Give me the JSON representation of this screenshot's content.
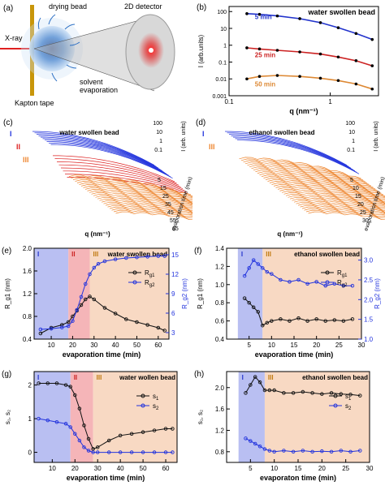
{
  "panel_a": {
    "letter": "(a)",
    "labels": {
      "xray": "X-ray",
      "drying_bead": "drying bead",
      "detector": "2D detector",
      "solvent_1": "solvent",
      "solvent_2": "evaporation",
      "kapton": "Kapton tape"
    },
    "colors": {
      "beam": "#e02020",
      "tape": "#c8960a",
      "bead": "#2b6fc4",
      "spot": "#ff2020"
    }
  },
  "chart_data": [
    {
      "panel": "(b)",
      "type": "scatter",
      "title": "water swollen bead",
      "log_x": true,
      "log_y": true,
      "xlabel": "q (nm⁻¹)",
      "ylabel": "I (arb.units)",
      "xlim": [
        0.1,
        3
      ],
      "ylim": [
        0.001,
        200
      ],
      "x_ticks": [
        "0.1",
        "1"
      ],
      "y_ticks": [
        "0.001",
        "0.01",
        "0.1",
        "1",
        "10",
        "100"
      ],
      "series": [
        {
          "name": "5 min",
          "color": "#2233cc",
          "x": [
            0.15,
            0.2,
            0.3,
            0.5,
            0.8,
            1.2,
            1.8,
            2.6
          ],
          "y": [
            75,
            68,
            55,
            38,
            22,
            11,
            5,
            2.2
          ]
        },
        {
          "name": "25 min",
          "color": "#cc2222",
          "x": [
            0.15,
            0.2,
            0.3,
            0.5,
            0.8,
            1.2,
            1.8,
            2.6
          ],
          "y": [
            0.7,
            0.6,
            0.5,
            0.4,
            0.3,
            0.2,
            0.12,
            0.06
          ]
        },
        {
          "name": "50 min",
          "color": "#dd8833",
          "x": [
            0.15,
            0.2,
            0.3,
            0.5,
            0.8,
            1.2,
            1.8,
            2.6
          ],
          "y": [
            0.01,
            0.014,
            0.016,
            0.014,
            0.011,
            0.008,
            0.005,
            0.0025
          ]
        }
      ]
    },
    {
      "panel": "(c)",
      "type": "area",
      "title": "water swollen bead",
      "xlabel": "q (nm⁻¹)",
      "zlabel": "I (arb. units)",
      "ylabel": "evaporation time (min)",
      "z_ticks": [
        "0.1",
        "1",
        "10",
        "100"
      ],
      "t_ticks": [
        "5",
        "15",
        "25",
        "35",
        "45",
        "55",
        "65"
      ],
      "regions": [
        "I",
        "II",
        "III"
      ],
      "colors": [
        "#2233dd",
        "#dd2222",
        "#ee8833"
      ]
    },
    {
      "panel": "(d)",
      "type": "area",
      "title": "ethanol swollen bead",
      "xlabel": "q (nm⁻¹)",
      "zlabel": "I (arb. units)",
      "ylabel": "evaporation time (min)",
      "z_ticks": [
        "0.1",
        "1",
        "10",
        "100"
      ],
      "t_ticks": [
        "5",
        "10",
        "15",
        "20",
        "25",
        "30"
      ],
      "regions": [
        "I",
        "III"
      ],
      "colors": [
        "#2233dd",
        "#ee8833"
      ]
    },
    {
      "panel": "(e)",
      "type": "line",
      "title": "water swollen bead",
      "xlabel": "evaporation time (min)",
      "ylabel": "R_g1 (nm)",
      "y2label": "R_g2 (nm)",
      "xlim": [
        2,
        65
      ],
      "ylim": [
        0.4,
        2.0
      ],
      "y2lim": [
        2,
        16
      ],
      "x_ticks": [
        10,
        20,
        30,
        40,
        50,
        60
      ],
      "y_ticks": [
        0.4,
        0.8,
        1.2,
        1.6,
        2.0
      ],
      "y2_ticks": [
        3,
        6,
        9,
        12,
        15
      ],
      "regions": [
        {
          "label": "I",
          "from": 2,
          "to": 18,
          "color": "#b9bff2"
        },
        {
          "label": "II",
          "from": 18,
          "to": 28,
          "color": "#f5b5b8"
        },
        {
          "label": "III",
          "from": 28,
          "to": 65,
          "color": "#f8d9c3"
        }
      ],
      "legend": [
        "R",
        "R"
      ],
      "legend_subs": [
        "g1",
        "g2"
      ],
      "series": [
        {
          "name": "R_g1",
          "color": "#111111",
          "axis": "left",
          "x": [
            5,
            10,
            15,
            18,
            20,
            22,
            24,
            26,
            28,
            30,
            35,
            40,
            45,
            50,
            55,
            60,
            63
          ],
          "y": [
            0.5,
            0.6,
            0.65,
            0.7,
            0.8,
            0.9,
            1.0,
            1.1,
            1.15,
            1.1,
            0.95,
            0.85,
            0.75,
            0.7,
            0.65,
            0.6,
            0.55
          ]
        },
        {
          "name": "R_g2",
          "color": "#2233dd",
          "axis": "right",
          "x": [
            5,
            10,
            15,
            18,
            20,
            22,
            24,
            26,
            28,
            30,
            32,
            35,
            40,
            45,
            50,
            55,
            60,
            63
          ],
          "y": [
            3.5,
            3.6,
            3.8,
            4.0,
            4.8,
            6.5,
            8.5,
            10.5,
            12.0,
            13.0,
            13.6,
            14.0,
            14.3,
            14.5,
            14.6,
            14.7,
            14.8,
            14.8
          ]
        }
      ]
    },
    {
      "panel": "(f)",
      "type": "line",
      "title": "ethanol swollen bead",
      "xlabel": "evaporation time (min)",
      "ylabel": "R_g1 (nm)",
      "y2label": "R_g2 (nm)",
      "xlim": [
        0,
        30
      ],
      "ylim": [
        0.4,
        1.4
      ],
      "y2lim": [
        1.0,
        3.3
      ],
      "x_ticks": [
        5,
        10,
        15,
        20,
        25,
        30
      ],
      "y_ticks": [
        0.4,
        0.6,
        0.8,
        1.0,
        1.2,
        1.4
      ],
      "y2_ticks": [
        1.0,
        1.5,
        2.0,
        2.5,
        3.0
      ],
      "regions": [
        {
          "label": "I",
          "from": 2.5,
          "to": 8,
          "color": "#b9bff2"
        },
        {
          "label": "III",
          "from": 8,
          "to": 30,
          "color": "#f8d9c3"
        }
      ],
      "legend": [
        "R",
        "R"
      ],
      "legend_subs": [
        "g1",
        "g2"
      ],
      "series": [
        {
          "name": "R_g1",
          "color": "#111111",
          "axis": "left",
          "x": [
            4,
            5,
            6,
            7,
            8,
            9,
            10,
            12,
            14,
            16,
            18,
            20,
            22,
            24,
            26,
            28
          ],
          "y": [
            0.85,
            0.8,
            0.75,
            0.7,
            0.55,
            0.58,
            0.6,
            0.62,
            0.6,
            0.63,
            0.6,
            0.62,
            0.6,
            0.61,
            0.6,
            0.62
          ]
        },
        {
          "name": "R_g2",
          "color": "#2233dd",
          "axis": "right",
          "x": [
            4,
            5,
            6,
            7,
            8,
            9,
            10,
            12,
            14,
            16,
            18,
            20,
            22,
            24,
            26,
            28
          ],
          "y": [
            2.6,
            2.8,
            3.0,
            2.9,
            2.8,
            2.7,
            2.65,
            2.5,
            2.45,
            2.5,
            2.4,
            2.45,
            2.35,
            2.4,
            2.35,
            2.35
          ]
        }
      ]
    },
    {
      "panel": "(g)",
      "type": "line",
      "title": "water wollen bead",
      "xlabel": "evaporation time (min)",
      "ylabel": "s₁, s₂",
      "xlim": [
        2,
        65
      ],
      "ylim": [
        -0.3,
        2.4
      ],
      "x_ticks": [
        10,
        20,
        30,
        40,
        50,
        60
      ],
      "y_ticks": [
        0,
        1,
        2
      ],
      "regions": [
        {
          "label": "I",
          "from": 2,
          "to": 18,
          "color": "#b9bff2"
        },
        {
          "label": "II",
          "from": 18,
          "to": 28,
          "color": "#f5b5b8"
        },
        {
          "label": "III",
          "from": 28,
          "to": 65,
          "color": "#f8d9c3"
        }
      ],
      "legend": [
        "s",
        "s"
      ],
      "legend_subs": [
        "1",
        "2"
      ],
      "series": [
        {
          "name": "s1",
          "color": "#111111",
          "x": [
            4,
            8,
            12,
            16,
            18,
            20,
            22,
            24,
            26,
            28,
            30,
            35,
            40,
            45,
            50,
            55,
            60,
            63
          ],
          "y": [
            2.05,
            2.05,
            2.05,
            2.0,
            1.95,
            1.7,
            1.3,
            0.8,
            0.4,
            0.1,
            0.15,
            0.35,
            0.5,
            0.55,
            0.6,
            0.65,
            0.7,
            0.7
          ]
        },
        {
          "name": "s2",
          "color": "#2233dd",
          "x": [
            4,
            8,
            12,
            16,
            18,
            20,
            22,
            24,
            26,
            28,
            30,
            35,
            40,
            45,
            50,
            55,
            60,
            63
          ],
          "y": [
            1.0,
            0.95,
            0.9,
            0.85,
            0.75,
            0.55,
            0.35,
            0.15,
            0.05,
            0.0,
            0.0,
            0.0,
            0.0,
            0.0,
            0.0,
            0.0,
            0.0,
            0.0
          ]
        }
      ]
    },
    {
      "panel": "(h)",
      "type": "line",
      "title": "ethanol swollen bead",
      "xlabel": "evaporaton time (min)",
      "ylabel": "s₁, s₂",
      "xlim": [
        0,
        30
      ],
      "ylim": [
        0.6,
        2.3
      ],
      "x_ticks": [
        5,
        10,
        15,
        20,
        25,
        30
      ],
      "y_ticks": [
        0.8,
        1.2,
        1.6,
        2.0
      ],
      "regions": [
        {
          "label": "I",
          "from": 2.5,
          "to": 8,
          "color": "#b9bff2"
        },
        {
          "label": "III",
          "from": 8,
          "to": 30,
          "color": "#f8d9c3"
        }
      ],
      "legend": [
        "s",
        "s"
      ],
      "legend_subs": [
        "1",
        "2"
      ],
      "series": [
        {
          "name": "s1",
          "color": "#111111",
          "x": [
            4,
            5,
            6,
            7,
            8,
            9,
            10,
            12,
            14,
            16,
            18,
            20,
            22,
            24,
            26,
            28
          ],
          "y": [
            1.9,
            2.05,
            2.2,
            2.1,
            1.95,
            1.95,
            1.95,
            1.9,
            1.9,
            1.92,
            1.9,
            1.88,
            1.9,
            1.88,
            1.87,
            1.85
          ]
        },
        {
          "name": "s2",
          "color": "#2233dd",
          "x": [
            4,
            5,
            6,
            7,
            8,
            9,
            10,
            12,
            14,
            16,
            18,
            20,
            22,
            24,
            26,
            28
          ],
          "y": [
            1.05,
            1.0,
            0.95,
            0.9,
            0.85,
            0.82,
            0.8,
            0.82,
            0.8,
            0.82,
            0.8,
            0.81,
            0.8,
            0.82,
            0.8,
            0.82
          ]
        }
      ]
    }
  ]
}
